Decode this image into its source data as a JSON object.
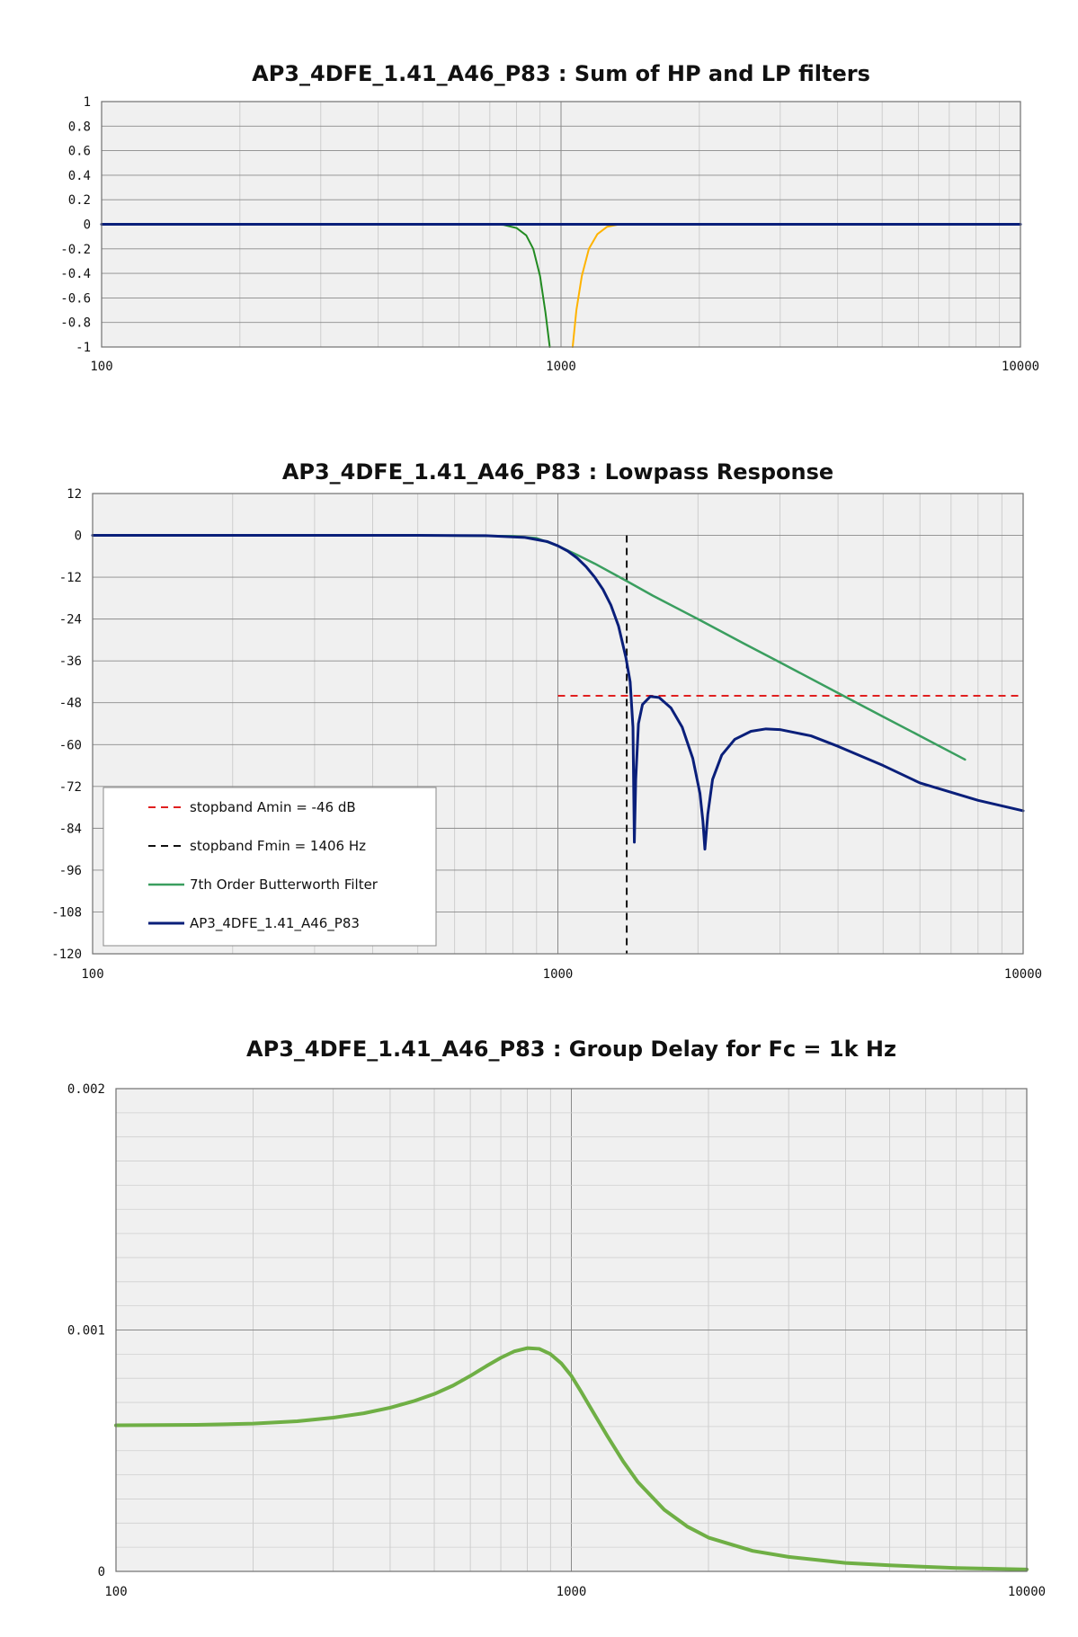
{
  "chart_data": [
    {
      "id": "sum",
      "type": "line",
      "title": "AP3_4DFE_1.41_A46_P83 : Sum of HP and LP filters",
      "x_scale": "log",
      "xlim": [
        100,
        10000
      ],
      "ylim": [
        -1,
        1
      ],
      "x_ticks": [
        "100",
        "1000",
        "10000"
      ],
      "y_ticks": [
        "1",
        "0.8",
        "0.6",
        "0.4",
        "0.2",
        "0",
        "-0.2",
        "-0.4",
        "-0.6",
        "-0.8",
        "-1"
      ],
      "grid": true,
      "legend": null,
      "series": [
        {
          "color": "#228B22",
          "width": 2,
          "x": [
            700,
            750,
            800,
            840,
            870,
            900,
            925,
            945
          ],
          "y": [
            0,
            -0.005,
            -0.03,
            -0.09,
            -0.2,
            -0.42,
            -0.72,
            -1.0
          ]
        },
        {
          "color": "#FFB300",
          "width": 2,
          "x": [
            1060,
            1080,
            1110,
            1150,
            1200,
            1260,
            1330,
            1400
          ],
          "y": [
            -1.0,
            -0.7,
            -0.42,
            -0.2,
            -0.08,
            -0.02,
            -0.003,
            0
          ]
        },
        {
          "color": "#0A1F7A",
          "width": 3,
          "x": [
            100,
            10000
          ],
          "y": [
            0,
            0
          ]
        }
      ]
    },
    {
      "id": "lowpass",
      "type": "line",
      "title": "AP3_4DFE_1.41_A46_P83 : Lowpass Response",
      "x_scale": "log",
      "xlim": [
        100,
        10000
      ],
      "ylim": [
        -120,
        12
      ],
      "x_ticks": [
        "100",
        "1000",
        "10000"
      ],
      "y_ticks": [
        "12",
        "0",
        "-12",
        "-24",
        "-36",
        "-48",
        "-60",
        "-72",
        "-84",
        "-96",
        "-108",
        "-120"
      ],
      "grid": true,
      "legend": "bottom-left",
      "series": [
        {
          "name": "stopband Amin = -46 dB",
          "color": "#E02020",
          "width": 2,
          "dash": "8,6",
          "x": [
            1000,
            10000
          ],
          "y": [
            -46,
            -46
          ]
        },
        {
          "name": "stopband Fmin = 1406 Hz",
          "color": "#111111",
          "width": 2,
          "dash": "8,6",
          "x": [
            1406,
            1406
          ],
          "y": [
            0,
            -120
          ]
        },
        {
          "name": "7th Order Butterworth Filter",
          "color": "#3A9E5F",
          "width": 2.5,
          "x": [
            100,
            500,
            800,
            900,
            1000,
            1100,
            1200,
            1406,
            1600,
            2000,
            2500,
            3000,
            4000,
            5000,
            6000,
            7000,
            7500
          ],
          "y": [
            0,
            0,
            -0.2,
            -0.8,
            -3,
            -5.6,
            -8.1,
            -13.1,
            -17.3,
            -24.0,
            -30.9,
            -36.4,
            -45.2,
            -52.0,
            -57.5,
            -62.2,
            -64.3
          ]
        },
        {
          "name": "AP3_4DFE_1.41_A46_P83",
          "color": "#0A1F7A",
          "width": 3,
          "x": [
            100,
            500,
            700,
            850,
            950,
            1000,
            1050,
            1100,
            1150,
            1200,
            1250,
            1300,
            1350,
            1400,
            1430,
            1450,
            1460,
            1470,
            1490,
            1520,
            1580,
            1650,
            1750,
            1850,
            1950,
            2020,
            2050,
            2070,
            2100,
            2150,
            2250,
            2400,
            2600,
            2800,
            3000,
            3500,
            4000,
            5000,
            6000,
            8000,
            10000
          ],
          "y": [
            0,
            0,
            -0.1,
            -0.6,
            -1.8,
            -3.0,
            -4.5,
            -6.5,
            -9.0,
            -12.0,
            -15.5,
            -20,
            -26,
            -35,
            -42,
            -55,
            -88,
            -70,
            -54,
            -48.5,
            -46.2,
            -46.5,
            -49.5,
            -55,
            -64,
            -74,
            -82,
            -90,
            -80,
            -70,
            -63,
            -58.5,
            -56.2,
            -55.5,
            -55.7,
            -57.5,
            -60.5,
            -66,
            -71,
            -76,
            -79
          ]
        }
      ]
    },
    {
      "id": "delay",
      "type": "line",
      "title": "AP3_4DFE_1.41_A46_P83 : Group Delay for Fc = 1k Hz",
      "x_scale": "log",
      "xlim": [
        100,
        10000
      ],
      "ylim": [
        0,
        0.002
      ],
      "x_ticks": [
        "100",
        "1000",
        "10000"
      ],
      "y_ticks": [
        "0.002",
        "0.001",
        "0"
      ],
      "grid": true,
      "legend": null,
      "series": [
        {
          "color": "#6FAF45",
          "width": 4,
          "x": [
            100,
            150,
            200,
            250,
            300,
            350,
            400,
            450,
            500,
            550,
            600,
            650,
            700,
            750,
            800,
            850,
            900,
            950,
            1000,
            1050,
            1100,
            1200,
            1300,
            1400,
            1600,
            1800,
            2000,
            2500,
            3000,
            4000,
            5000,
            7000,
            10000
          ],
          "y": [
            0.000605,
            0.000607,
            0.000612,
            0.000622,
            0.000637,
            0.000655,
            0.000678,
            0.000705,
            0.000735,
            0.00077,
            0.00081,
            0.00085,
            0.000885,
            0.000912,
            0.000925,
            0.000922,
            0.0009,
            0.000862,
            0.00081,
            0.000745,
            0.00068,
            0.00056,
            0.000455,
            0.00037,
            0.000255,
            0.000185,
            0.00014,
            8.5e-05,
            6e-05,
            3.5e-05,
            2.5e-05,
            1.4e-05,
            8e-06
          ]
        }
      ]
    }
  ]
}
